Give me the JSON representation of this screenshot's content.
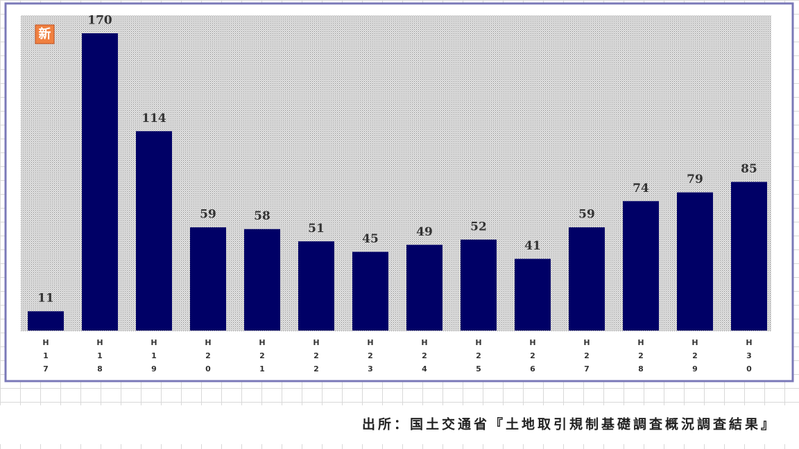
{
  "chart_data": {
    "type": "bar",
    "badge": "新",
    "categories": [
      "H17",
      "H18",
      "H19",
      "H20",
      "H21",
      "H22",
      "H23",
      "H24",
      "H25",
      "H26",
      "H27",
      "H28",
      "H29",
      "H30"
    ],
    "values": [
      11,
      170,
      114,
      59,
      58,
      51,
      45,
      49,
      52,
      41,
      59,
      74,
      79,
      85
    ],
    "color": "#000066",
    "source": "出所：国土交通省『土地取引規制基礎調査概況調査結果』"
  }
}
